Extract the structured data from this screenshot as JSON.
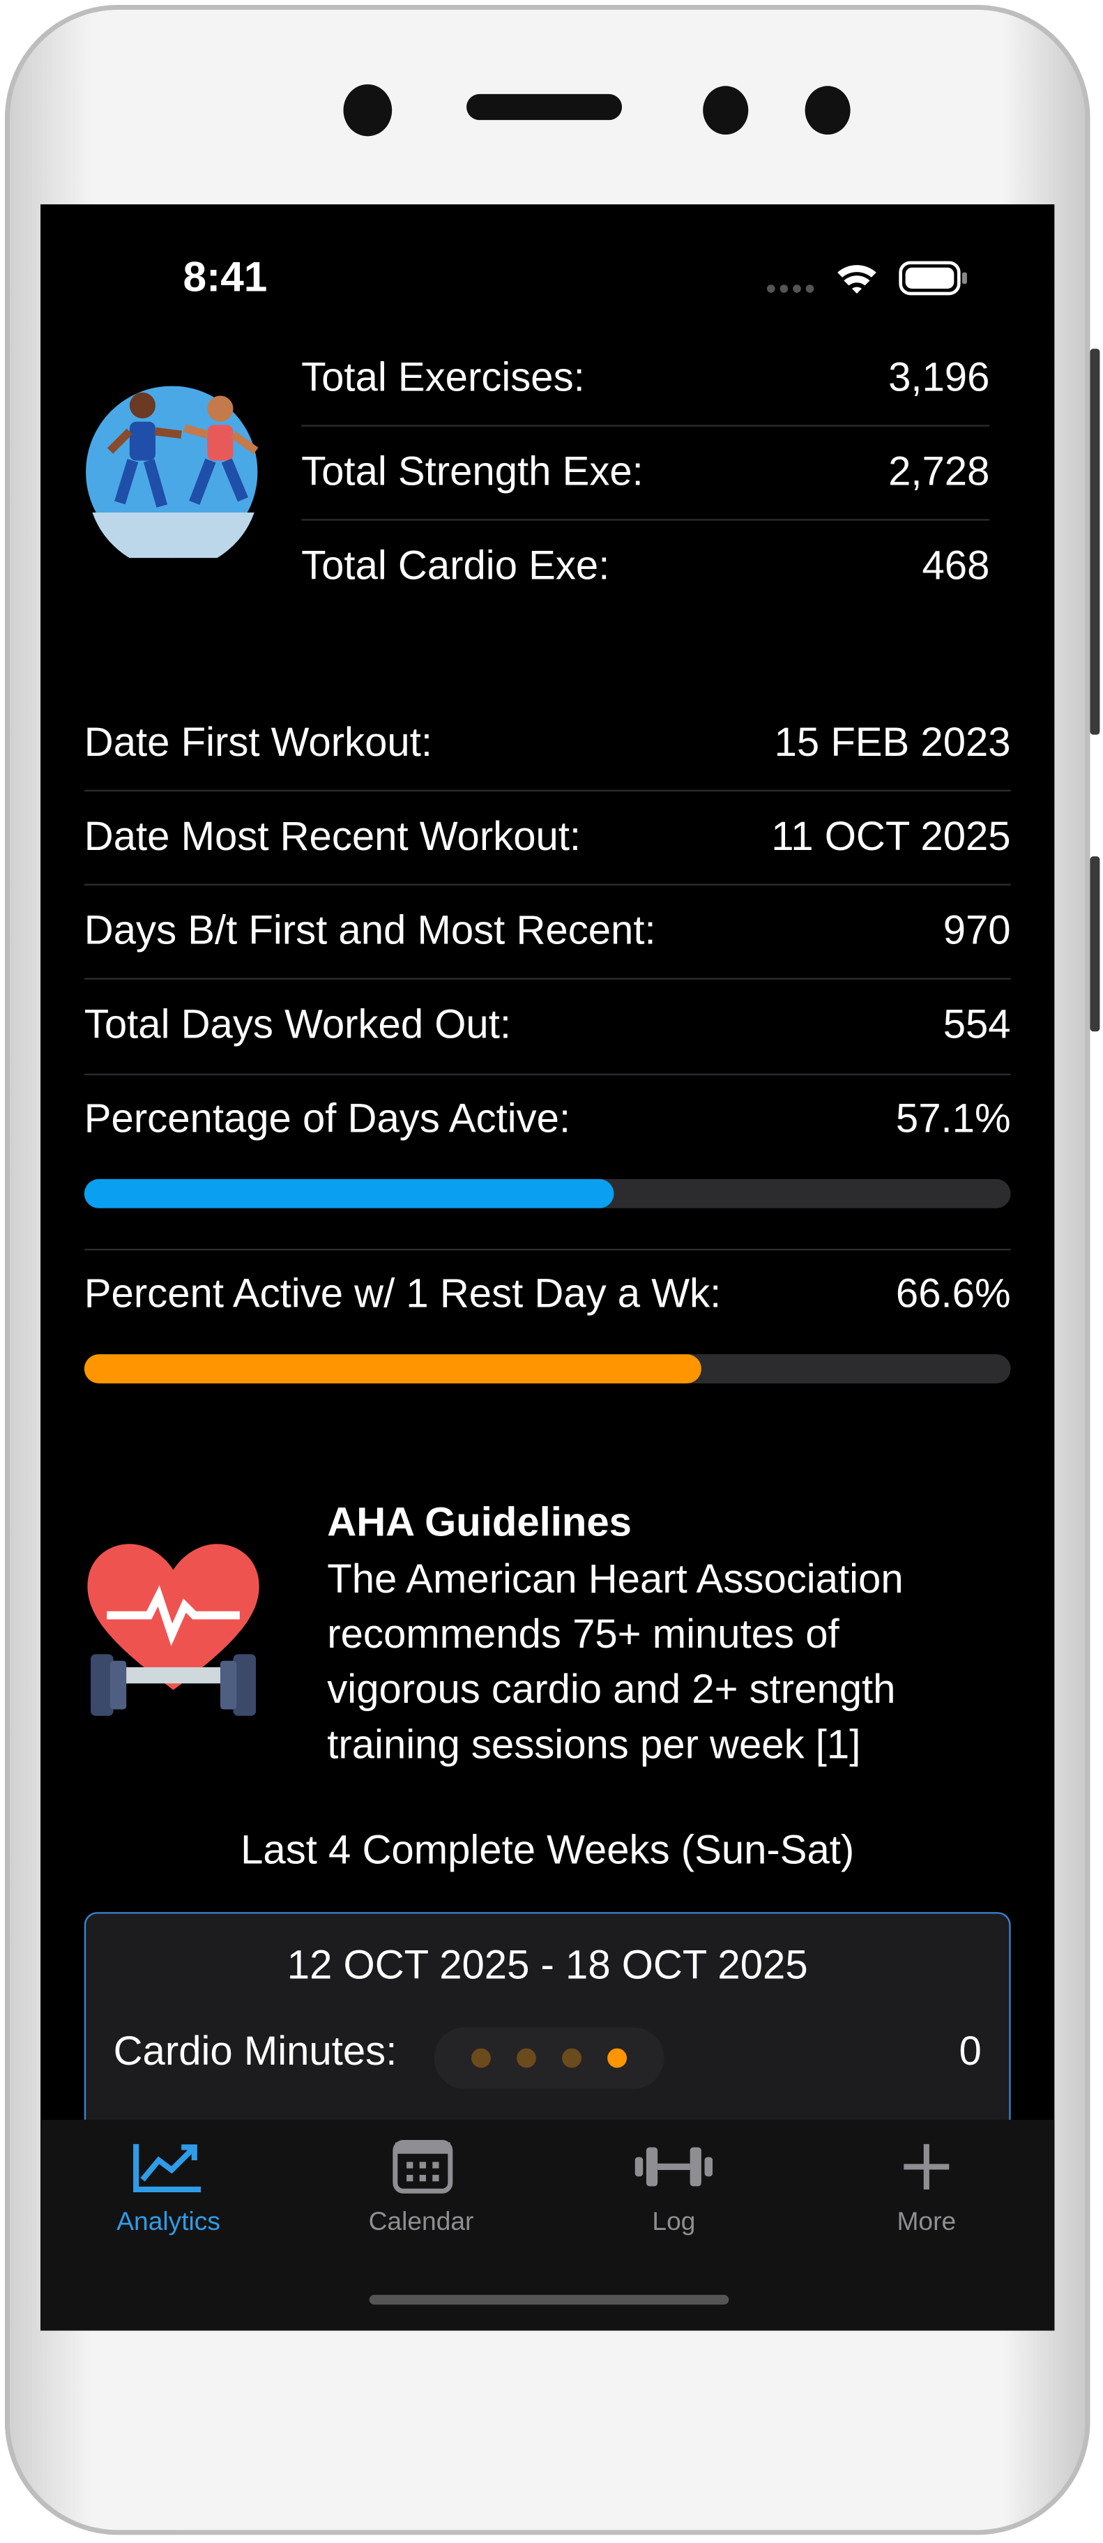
{
  "status_bar": {
    "time": "8:41"
  },
  "summary": {
    "rows": [
      {
        "label": "Total Exercises:",
        "value": "3,196"
      },
      {
        "label": "Total Strength Exe:",
        "value": "2,728"
      },
      {
        "label": "Total Cardio Exe:",
        "value": "468"
      }
    ]
  },
  "stats": {
    "rows": [
      {
        "label": "Date First Workout:",
        "value": "15 FEB 2023"
      },
      {
        "label": "Date Most Recent Workout:",
        "value": "11 OCT 2025"
      },
      {
        "label": "Days B/t First and Most Recent:",
        "value": "970"
      },
      {
        "label": "Total Days Worked Out:",
        "value": "554"
      }
    ],
    "progress": [
      {
        "label": "Percentage of Days Active:",
        "value": 57.1,
        "value_label": "57.1%",
        "color": "#0a9ff0"
      },
      {
        "label": "Percent Active w/ 1 Rest Day a Wk:",
        "value": 66.6,
        "value_label": "66.6%",
        "color": "#ff9500"
      }
    ]
  },
  "guidelines": {
    "title": "AHA Guidelines",
    "lines": [
      "The American Heart Association",
      "recommends 75+ minutes of",
      "vigorous cardio and 2+ strength",
      "training sessions per week [1]"
    ]
  },
  "weeks": {
    "title": "Last 4 Complete Weeks (Sun-Sat)",
    "card": {
      "range": "12 OCT 2025 - 18 OCT 2025",
      "label": "Cardio Minutes:",
      "value": "0"
    }
  },
  "tab_bar": {
    "tabs": [
      "Analytics",
      "Calendar",
      "Log",
      "More"
    ]
  }
}
